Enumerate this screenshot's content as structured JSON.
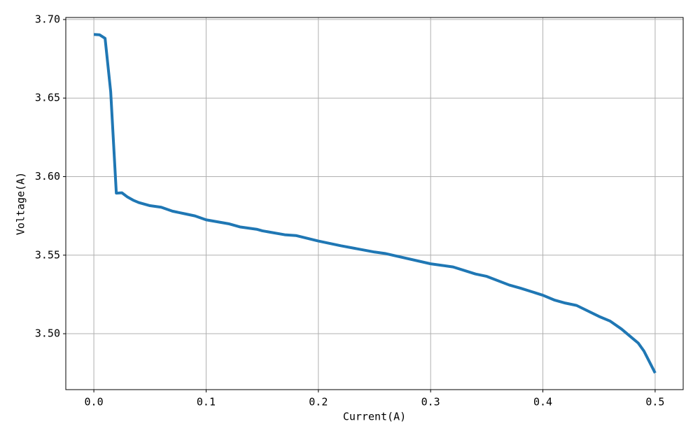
{
  "chart_data": {
    "type": "line",
    "xlabel": "Current(A)",
    "ylabel": "Voltage(A)",
    "x": [
      0,
      0.005,
      0.01,
      0.015,
      0.02,
      0.025,
      0.03,
      0.035,
      0.04,
      0.05,
      0.06,
      0.07,
      0.08,
      0.09,
      0.1,
      0.12,
      0.13,
      0.145,
      0.15,
      0.17,
      0.18,
      0.2,
      0.22,
      0.25,
      0.26,
      0.3,
      0.32,
      0.34,
      0.35,
      0.37,
      0.38,
      0.4,
      0.41,
      0.42,
      0.43,
      0.45,
      0.46,
      0.47,
      0.48,
      0.485,
      0.49,
      0.5
    ],
    "series": [
      {
        "name": "Voltage",
        "color": "#1f77b4",
        "values": [
          3.6905,
          3.6903,
          3.688,
          3.654,
          3.5895,
          3.5897,
          3.587,
          3.585,
          3.5835,
          3.5815,
          3.5805,
          3.578,
          3.5765,
          3.575,
          3.5725,
          3.57,
          3.568,
          3.5665,
          3.5655,
          3.563,
          3.5625,
          3.559,
          3.556,
          3.552,
          3.551,
          3.5445,
          3.5425,
          3.538,
          3.5365,
          3.531,
          3.529,
          3.5245,
          3.5215,
          3.5195,
          3.518,
          3.511,
          3.508,
          3.503,
          3.497,
          3.494,
          3.489,
          3.475
        ]
      }
    ],
    "xlim": [
      -0.025,
      0.525
    ],
    "ylim": [
      3.4644,
      3.7013
    ],
    "xticks": [
      {
        "value": 0,
        "label": "0.0"
      },
      0.1,
      0.2,
      0.3,
      0.4,
      0.5
    ],
    "yticks": [
      {
        "value": 3.5,
        "label": "3.50"
      },
      3.55,
      {
        "value": 3.6,
        "label": "3.60"
      },
      3.65,
      {
        "value": 3.7,
        "label": "3.70"
      }
    ],
    "grid": true
  }
}
